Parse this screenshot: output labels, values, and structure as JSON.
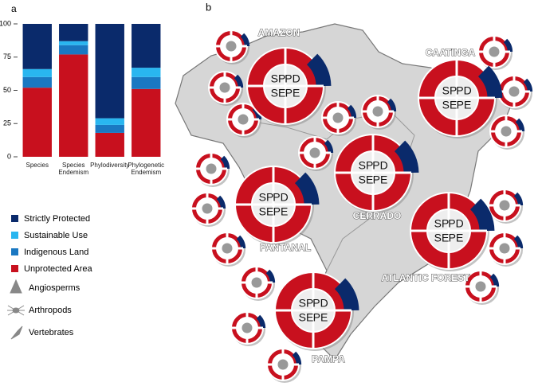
{
  "chart_data": {
    "type": "bar",
    "stacked": true,
    "panel_label": "a",
    "categories": [
      "Species",
      "Species Endemism",
      "Phylodiversity",
      "Phylogenetic Endemism"
    ],
    "series": [
      {
        "name": "Unprotected Area",
        "color": "#c8101e",
        "values": [
          52,
          77,
          18,
          51
        ]
      },
      {
        "name": "Indigenous Land",
        "color": "#1a78c2",
        "values": [
          8,
          7,
          6,
          9
        ]
      },
      {
        "name": "Sustainable Use",
        "color": "#29b6f0",
        "values": [
          6,
          3,
          5,
          7
        ]
      },
      {
        "name": "Strictly Protected",
        "color": "#0a2a6b",
        "values": [
          34,
          13,
          71,
          33
        ]
      }
    ],
    "ylim": [
      0,
      100
    ],
    "yticks": [
      0,
      25,
      50,
      75,
      100
    ],
    "legend_order": [
      3,
      2,
      1,
      0
    ],
    "taxa": [
      "Angiosperms",
      "Arthropods",
      "Vertebrates"
    ]
  },
  "map": {
    "panel_label": "b",
    "quadrant_labels": [
      "SP",
      "PD",
      "SE",
      "PE"
    ],
    "regions": [
      "AMAZON",
      "CAATINGA",
      "CERRADO",
      "PANTANAL",
      "ATLANTIC FOREST",
      "PAMPA"
    ]
  }
}
